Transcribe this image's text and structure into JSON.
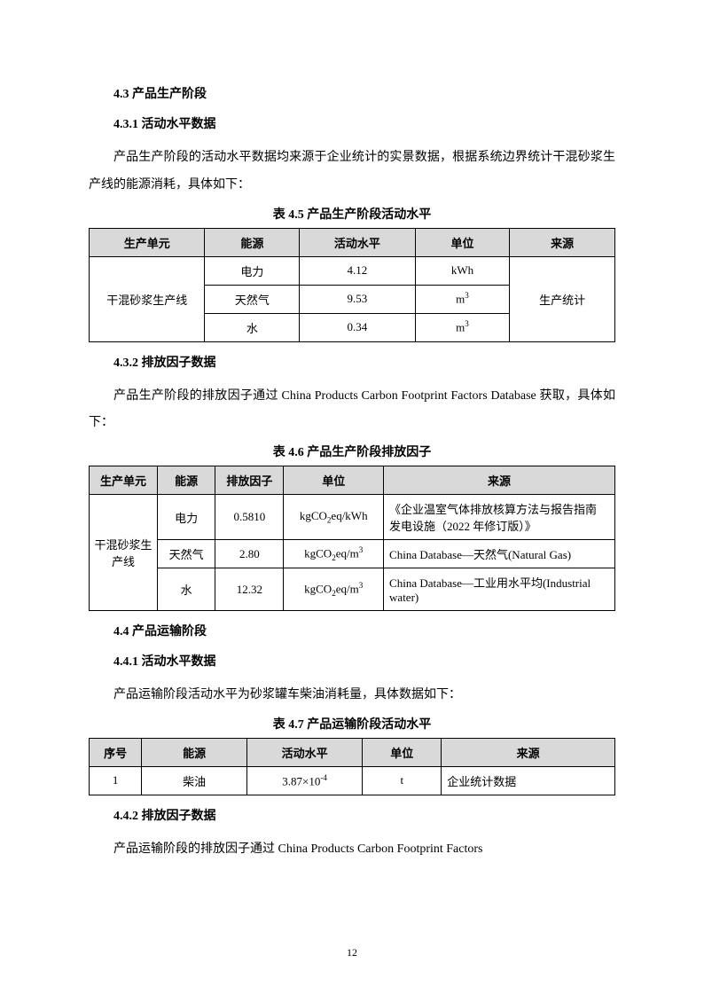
{
  "section_4_3": {
    "title": "4.3 产品生产阶段",
    "sub_4_3_1": {
      "title": "4.3.1 活动水平数据",
      "paragraph": "产品生产阶段的活动水平数据均来源于企业统计的实景数据，根据系统边界统计干混砂浆生产线的能源消耗，具体如下：",
      "table_caption": "表 4.5 产品生产阶段活动水平",
      "table": {
        "headers": [
          "生产单元",
          "能源",
          "活动水平",
          "单位",
          "来源"
        ],
        "unit_cell": "干混砂浆生产线",
        "source_cell": "生产统计",
        "rows": [
          {
            "energy": "电力",
            "level": "4.12",
            "unit": "kWh"
          },
          {
            "energy": "天然气",
            "level": "9.53",
            "unit_html": "m<sup>3</sup>"
          },
          {
            "energy": "水",
            "level": "0.34",
            "unit_html": "m<sup>3</sup>"
          }
        ]
      }
    },
    "sub_4_3_2": {
      "title": "4.3.2 排放因子数据",
      "paragraph": "产品生产阶段的排放因子通过 China Products Carbon Footprint Factors Database 获取，具体如下：",
      "table_caption": "表 4.6 产品生产阶段排放因子",
      "table": {
        "headers": [
          "生产单元",
          "能源",
          "排放因子",
          "单位",
          "来源"
        ],
        "unit_cell": "干混砂浆生产线",
        "rows": [
          {
            "energy": "电力",
            "factor": "0.5810",
            "unit_html": "kgCO<sub>2</sub>eq/kWh",
            "source": "《企业温室气体排放核算方法与报告指南 发电设施（2022 年修订版）》"
          },
          {
            "energy": "天然气",
            "factor": "2.80",
            "unit_html": "kgCO<sub>2</sub>eq/m<sup>3</sup>",
            "source": "China Database—天然气(Natural Gas)"
          },
          {
            "energy": "水",
            "factor": "12.32",
            "unit_html": "kgCO<sub>2</sub>eq/m<sup>3</sup>",
            "source": "China Database—工业用水平均(Industrial water)"
          }
        ]
      }
    }
  },
  "section_4_4": {
    "title": "4.4 产品运输阶段",
    "sub_4_4_1": {
      "title": "4.4.1 活动水平数据",
      "paragraph": "产品运输阶段活动水平为砂浆罐车柴油消耗量，具体数据如下：",
      "table_caption": "表 4.7 产品运输阶段活动水平",
      "table": {
        "headers": [
          "序号",
          "能源",
          "活动水平",
          "单位",
          "来源"
        ],
        "rows": [
          {
            "seq": "1",
            "energy": "柴油",
            "level_html": "3.87×10<sup>-4</sup>",
            "unit": "t",
            "source": "企业统计数据"
          }
        ]
      }
    },
    "sub_4_4_2": {
      "title": "4.4.2 排放因子数据",
      "paragraph": "产品运输阶段的排放因子通过 China Products Carbon Footprint Factors"
    }
  },
  "page_number": "12"
}
